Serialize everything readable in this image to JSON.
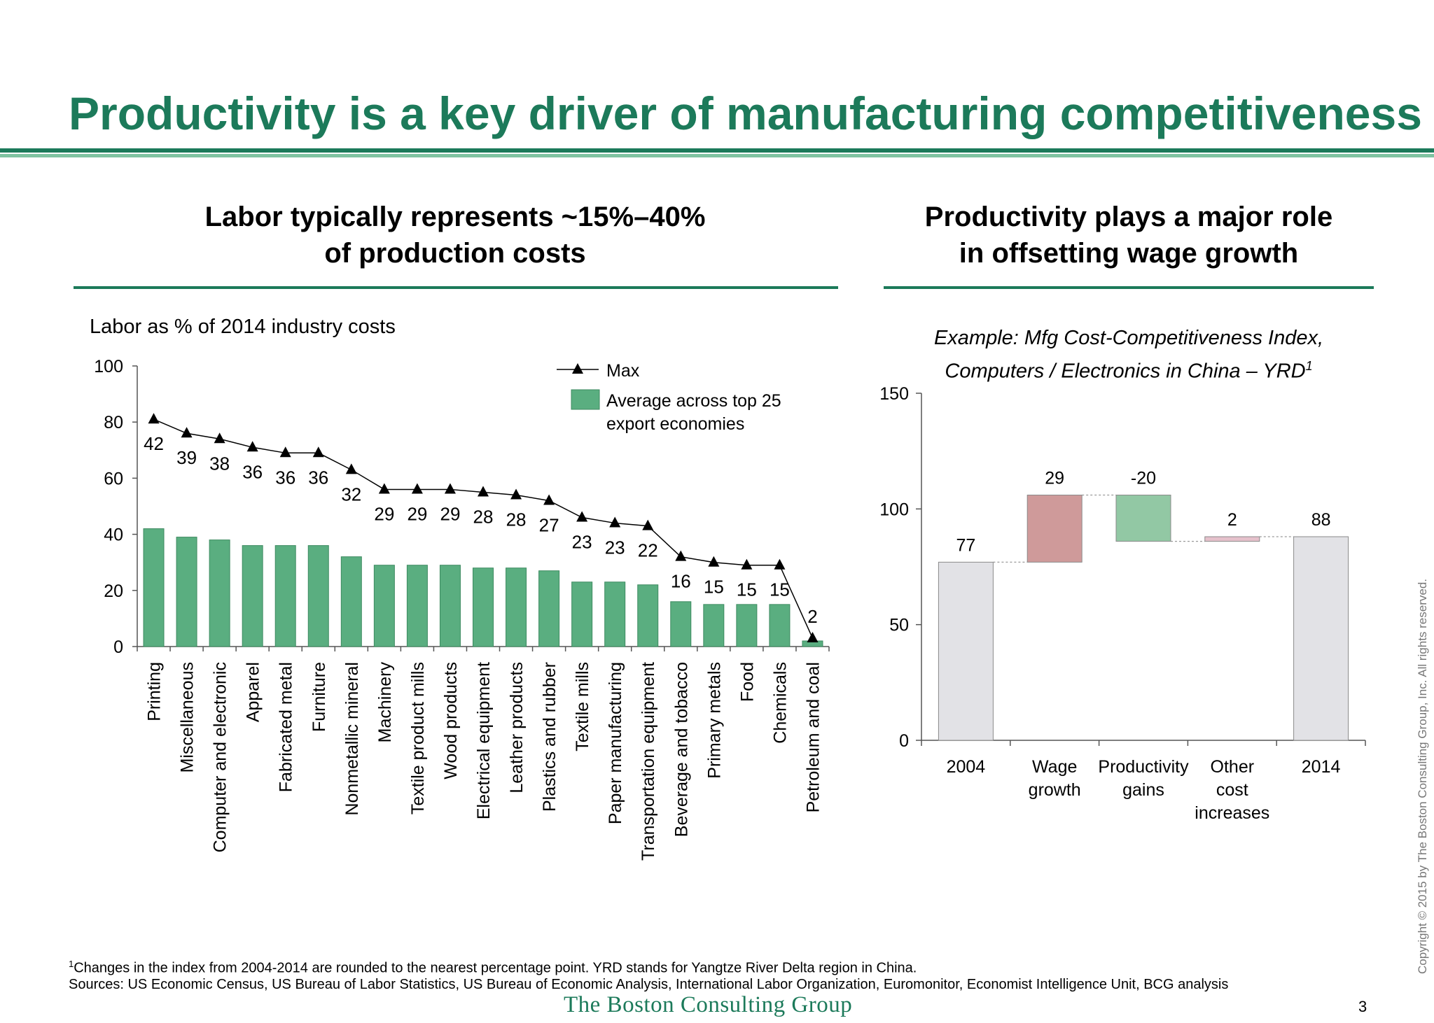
{
  "page": {
    "title": "Productivity is a key driver of manufacturing competitiveness",
    "page_number": "3",
    "logo_text": "The Boston Consulting Group",
    "copyright": "Copyright © 2015 by The Boston Consulting Group, Inc. All rights reserved."
  },
  "left": {
    "heading_line1": "Labor typically represents ~15%–40%",
    "heading_line2": "of production costs",
    "subtitle": "Labor as % of 2014 industry costs"
  },
  "right": {
    "heading_line1": "Productivity plays a major role",
    "heading_line2": "in offsetting wage growth",
    "example_line1": "Example: Mfg Cost-Competitiveness Index,",
    "example_line2": "Computers / Electronics in China – YRD",
    "example_sup": "1"
  },
  "footnotes": {
    "note_sup": "1",
    "note": "Changes in the index from 2004-2014 are rounded to the nearest percentage point. YRD stands for Yangtze River Delta region in China.",
    "sources": "Sources: US Economic Census, US Bureau of Labor Statistics, US Bureau of Economic Analysis, International Labor Organization, Euromonitor, Economist Intelligence Unit, BCG analysis"
  },
  "colors": {
    "brand_green": "#1c7a5a",
    "bar_green": "#5aae80",
    "increase_red": "#cf9a9a",
    "decrease_green": "#92c8a4",
    "other_pink": "#e6c1cb",
    "total_gray": "#e2e2e6"
  },
  "chart_data": [
    {
      "type": "bar",
      "title": "Labor as % of 2014 industry costs",
      "categories": [
        "Printing",
        "Miscellaneous",
        "Computer and electronic",
        "Apparel",
        "Fabricated metal",
        "Furniture",
        "Nonmetallic mineral",
        "Machinery",
        "Textile product mills",
        "Wood products",
        "Electrical equipment",
        "Leather products",
        "Plastics and rubber",
        "Textile mills",
        "Paper manufacturing",
        "Transportation equipment",
        "Beverage and tobacco",
        "Primary metals",
        "Food",
        "Chemicals",
        "Petroleum and coal"
      ],
      "series": [
        {
          "name": "Average across top 25 export economies",
          "type": "bar",
          "values": [
            42,
            39,
            38,
            36,
            36,
            36,
            32,
            29,
            29,
            29,
            28,
            28,
            27,
            23,
            23,
            22,
            16,
            15,
            15,
            15,
            2
          ]
        },
        {
          "name": "Max",
          "type": "line",
          "marker": "triangle",
          "values": [
            81,
            76,
            74,
            71,
            69,
            69,
            63,
            56,
            56,
            56,
            55,
            54,
            52,
            46,
            44,
            43,
            32,
            30,
            29,
            29,
            3
          ]
        }
      ],
      "ylim": [
        0,
        100
      ],
      "yticks": [
        0,
        20,
        40,
        60,
        80,
        100
      ],
      "legend": {
        "line": "Max",
        "bar_line1": "Average across top 25",
        "bar_line2": "export economies"
      },
      "legend_position": "top-right",
      "grid": false
    },
    {
      "type": "bar",
      "subtype": "waterfall",
      "title": "Example: Mfg Cost-Competitiveness Index, Computers / Electronics in China – YRD",
      "categories": [
        {
          "lines": [
            "2004"
          ]
        },
        {
          "lines": [
            "Wage",
            "growth"
          ]
        },
        {
          "lines": [
            "Productivity",
            "gains"
          ]
        },
        {
          "lines": [
            "Other",
            "cost",
            "increases"
          ]
        },
        {
          "lines": [
            "2014"
          ]
        }
      ],
      "steps": [
        {
          "kind": "total",
          "value": 77,
          "label": "77"
        },
        {
          "kind": "increase",
          "value": 29,
          "label": "29"
        },
        {
          "kind": "decrease",
          "value": -20,
          "label": "-20"
        },
        {
          "kind": "other",
          "value": 2,
          "label": "2"
        },
        {
          "kind": "total",
          "value": 88,
          "label": "88"
        }
      ],
      "ylim": [
        0,
        150
      ],
      "yticks": [
        0,
        50,
        100,
        150
      ],
      "grid": false
    }
  ]
}
